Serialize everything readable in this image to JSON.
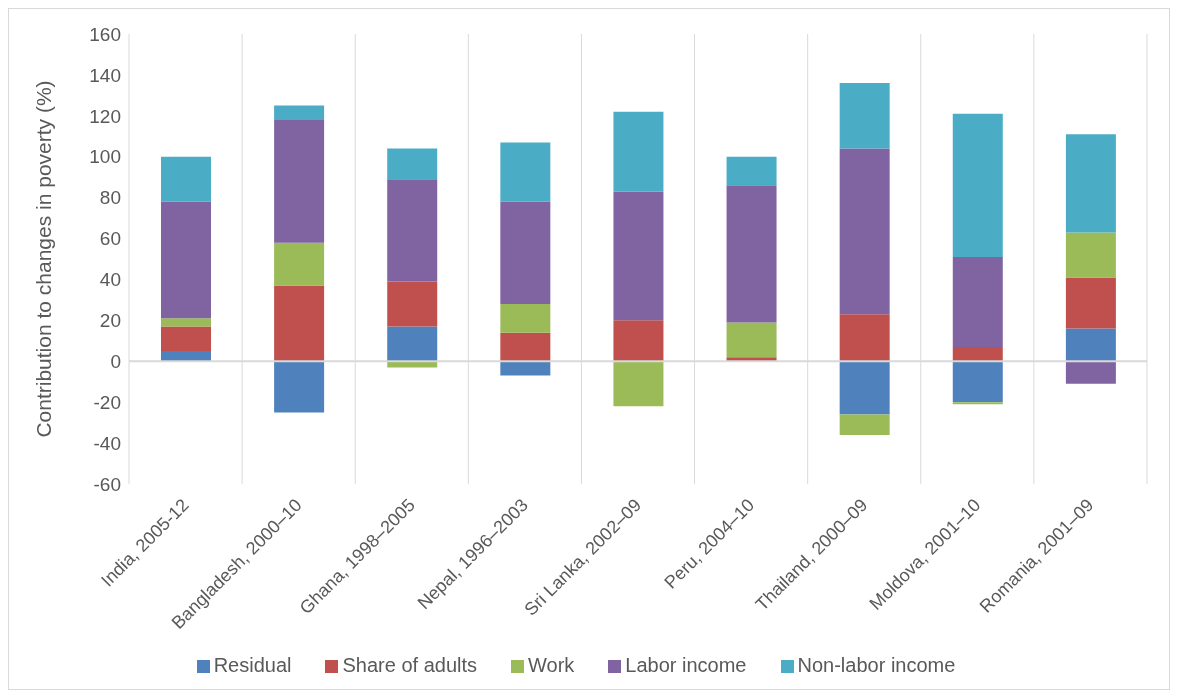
{
  "chart_data": {
    "type": "bar",
    "stacked": true,
    "ylabel": "Contribution to changes in poverty (%)",
    "categories": [
      "India, 2005-12",
      "Bangladesh, 2000–10",
      "Ghana, 1998–2005",
      "Nepal, 1996–2003",
      "Sri Lanka, 2002–09",
      "Peru, 2004–10",
      "Thailand, 2000–09",
      "Moldova, 2001–10",
      "Romania, 2001–09"
    ],
    "series": [
      {
        "name": "Residual",
        "color": "#4f81bd",
        "values": [
          5,
          -25,
          17,
          -7,
          0,
          0,
          -26,
          -20,
          16
        ]
      },
      {
        "name": "Share of adults",
        "color": "#c0504d",
        "values": [
          12,
          37,
          22,
          14,
          20,
          2,
          23,
          7,
          25
        ]
      },
      {
        "name": "Work",
        "color": "#9bbb59",
        "values": [
          4,
          21,
          -3,
          14,
          -22,
          17,
          -10,
          -1,
          22
        ]
      },
      {
        "name": "Labor income",
        "color": "#8064a2",
        "values": [
          57,
          60,
          50,
          50,
          63,
          67,
          81,
          44,
          -11
        ]
      },
      {
        "name": "Non-labor income",
        "color": "#4bacc6",
        "values": [
          22,
          7,
          15,
          29,
          39,
          14,
          32,
          70,
          48
        ]
      }
    ],
    "ylim": [
      -60,
      160
    ],
    "yticks": [
      -60,
      -40,
      -20,
      0,
      20,
      40,
      60,
      80,
      100,
      120,
      140,
      160
    ],
    "grid": "x",
    "legend": "bottom"
  }
}
